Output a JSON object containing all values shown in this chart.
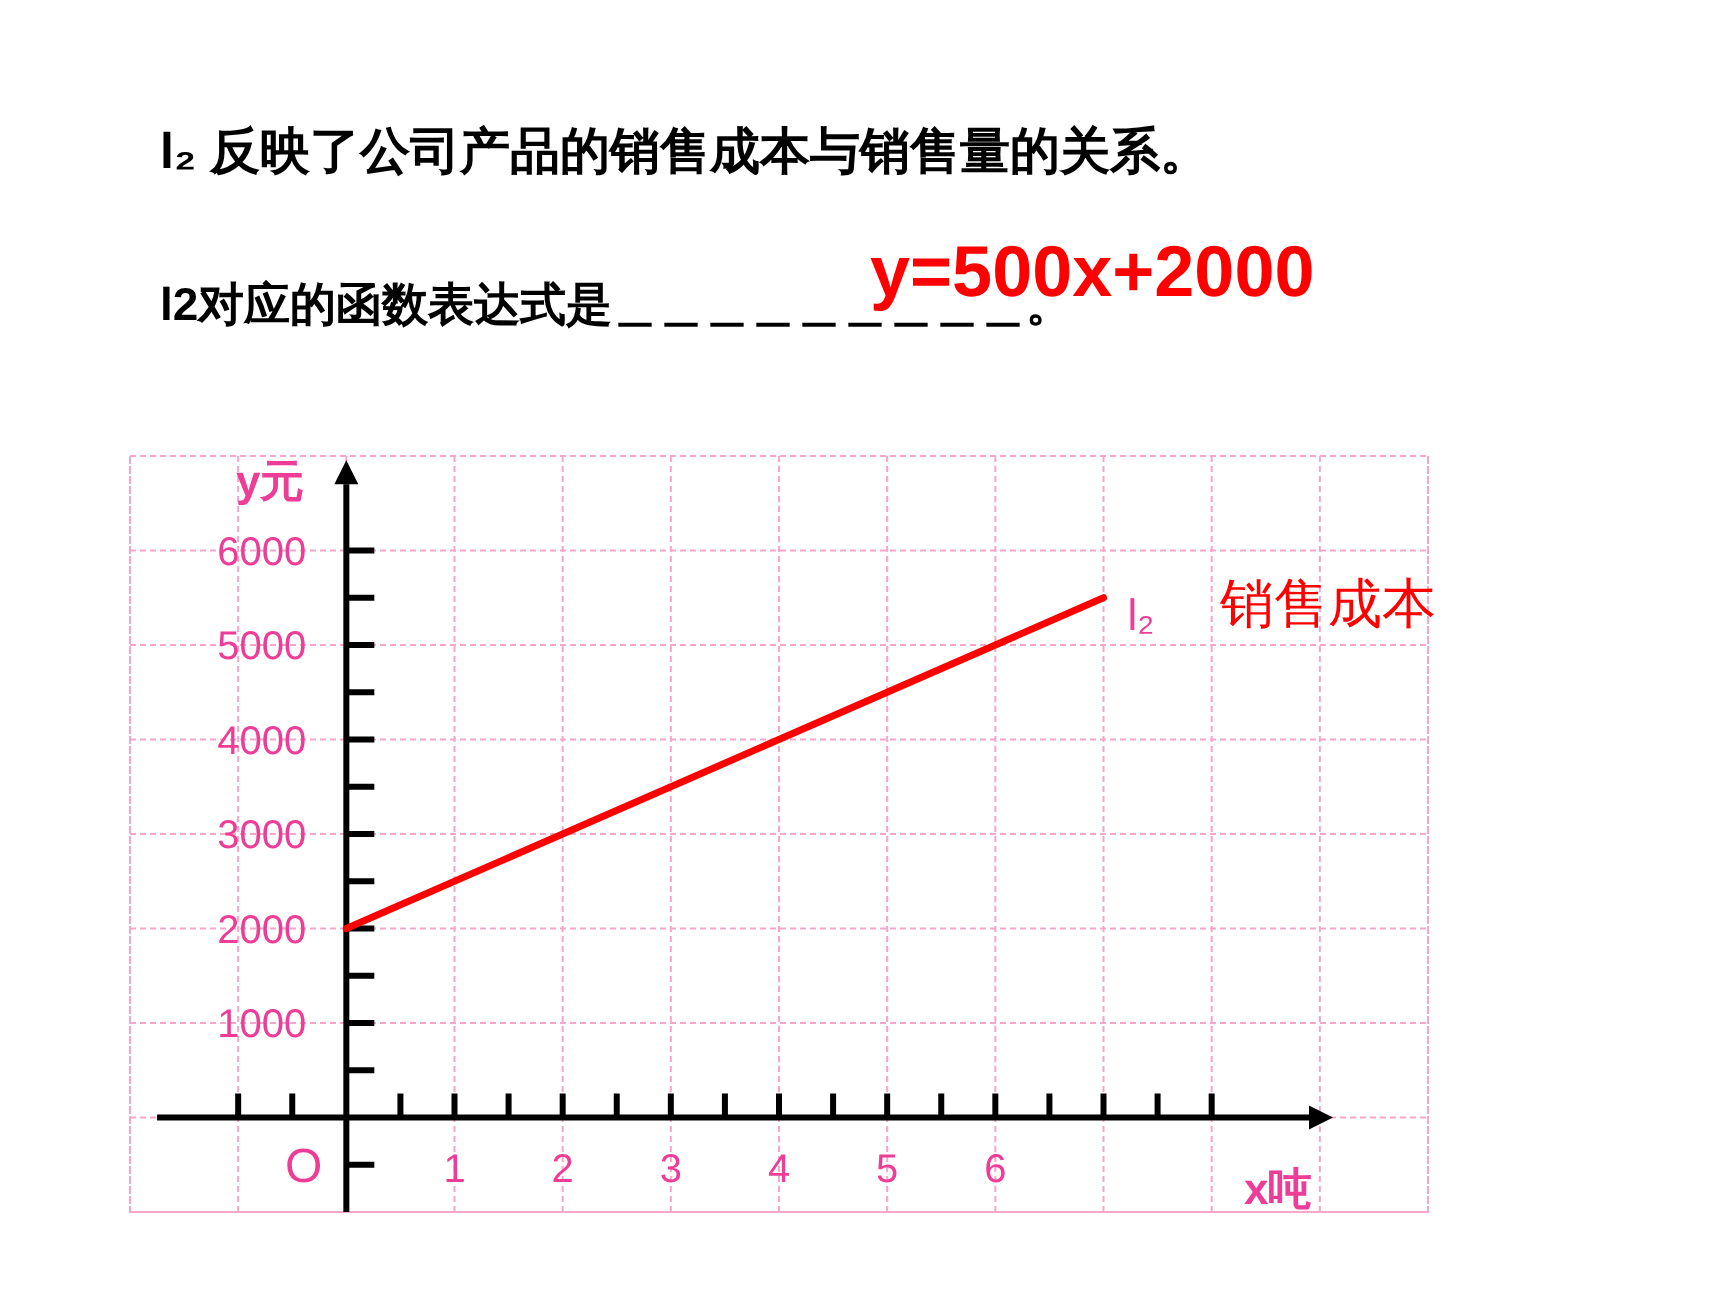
{
  "chart_data": {
    "type": "line",
    "title": "l₂ 反映了公司产品的销售成本与销售量的关系。",
    "subtitle": "l2对应的函数表达式是＿＿＿＿＿＿＿＿＿。",
    "xlabel": "x吨",
    "ylabel": "y元",
    "x": [
      0,
      7
    ],
    "series": [
      {
        "name": "销售成本",
        "color": "#ff0000",
        "values": [
          2000,
          5500
        ]
      }
    ],
    "xlim": [
      -2,
      10
    ],
    "ylim": [
      -1000,
      7000
    ],
    "xticks": [
      {
        "value": -1,
        "label": null
      },
      {
        "value": -0.5,
        "label": null
      },
      {
        "value": 0.5,
        "label": null
      },
      1,
      {
        "value": 1.5,
        "label": null
      },
      2,
      {
        "value": 2.5,
        "label": null
      },
      3,
      {
        "value": 3.5,
        "label": null
      },
      4,
      {
        "value": 4.5,
        "label": null
      },
      5,
      {
        "value": 5.5,
        "label": null
      },
      6,
      {
        "value": 6.5,
        "label": null
      },
      {
        "value": 7,
        "label": null
      },
      {
        "value": 7.5,
        "label": null
      },
      {
        "value": 8,
        "label": null
      }
    ],
    "yticks": [
      {
        "value": -500,
        "label": null
      },
      {
        "value": 500,
        "label": null
      },
      1000,
      {
        "value": 1500,
        "label": null
      },
      2000,
      {
        "value": 2500,
        "label": null
      },
      3000,
      {
        "value": 3500,
        "label": null
      },
      4000,
      {
        "value": 4500,
        "label": null
      },
      5000,
      {
        "value": 5500,
        "label": null
      },
      6000
    ],
    "grid": true,
    "legend": "right",
    "annotations": [
      {
        "text": "y=500x+2000"
      },
      {
        "text": "l₂",
        "x": 7,
        "y": 5500
      },
      "O"
    ]
  }
}
